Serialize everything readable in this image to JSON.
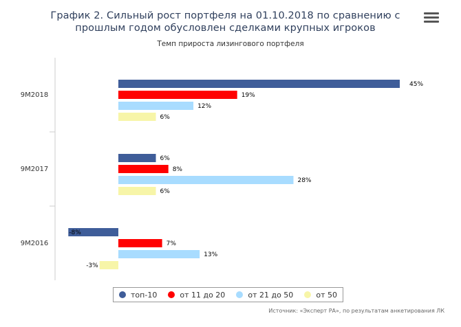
{
  "header": {
    "title": "График 2. Сильный рост портфеля на 01.10.2018 по сравнению с прошлым годом обусловлен сделками крупных игроков",
    "subtitle": "Темп прироста лизингового портфеля",
    "menu_icon": "hamburger-menu-icon"
  },
  "credits": "Источник: «Эксперт РА», по результатам анкетирования ЛК",
  "chart_data": {
    "type": "bar",
    "orientation": "horizontal",
    "title": "График 2. Сильный рост портфеля на 01.10.2018 по сравнению с прошлым годом обусловлен сделками крупных игроков",
    "subtitle": "Темп прироста лизингового портфеля",
    "categories": [
      "9M2018",
      "9M2017",
      "9M2016"
    ],
    "value_suffix": "%",
    "xlim": [
      -8,
      45
    ],
    "legend_position": "bottom",
    "grid": false,
    "series": [
      {
        "name": "топ-10",
        "color": "#3f5d99",
        "values": [
          45,
          6,
          -8
        ]
      },
      {
        "name": "от 11 до 20",
        "color": "#ff0000",
        "values": [
          19,
          8,
          7
        ]
      },
      {
        "name": "от 21 до 50",
        "color": "#a8dcff",
        "values": [
          12,
          28,
          13
        ]
      },
      {
        "name": "от 50",
        "color": "#f7f5a8",
        "values": [
          6,
          6,
          -3
        ]
      }
    ]
  }
}
